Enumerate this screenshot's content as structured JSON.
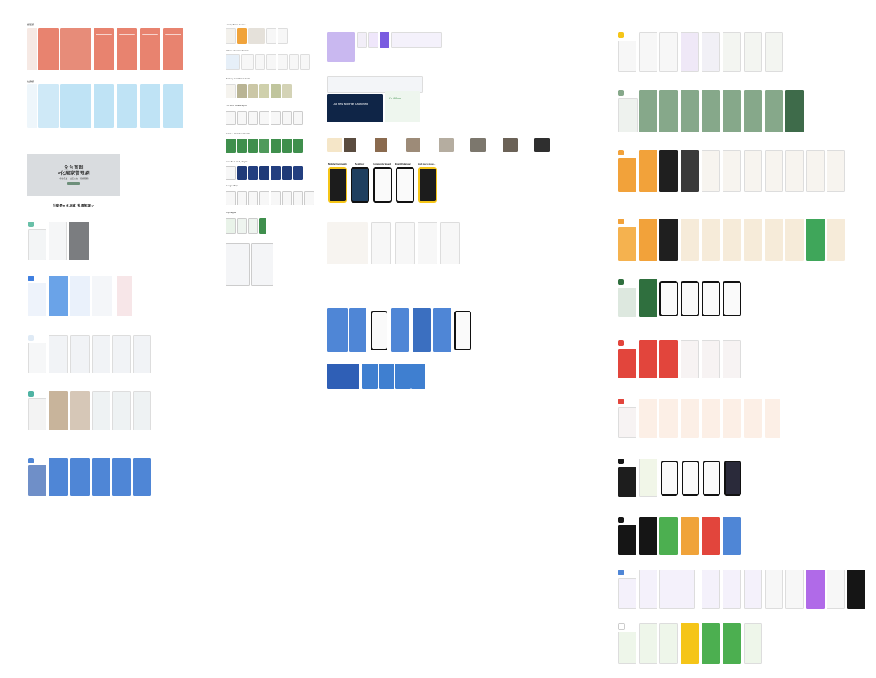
{
  "canvas": {
    "background": "#ffffff",
    "zoom": ""
  },
  "sections": {
    "left_top_label": "旅遊類",
    "left_mid_label": "社群類",
    "banner": {
      "title_line1": "全台首創",
      "title_line2": "e化居家管理網",
      "subtitle": "代收包裹 · 社區公告 · 報修服務",
      "caption": "什麼是 e 化居家 (社區管理)?"
    },
    "middle_labels": [
      "Lonely Planet Guides",
      "Airbnb: Vacation Rentals",
      "Booking.com Travel Deals",
      "Trip.com: Book Flights",
      "Hotels & Vacation Rentals",
      "Expedia: Hotels, Flights",
      "Google Maps",
      "Citymapper"
    ],
    "right_col_labels": [
      "Mobile Community",
      "Neighbor",
      "Community Board",
      "Event Calendar",
      "And much more..."
    ],
    "promo_text": "Our new app Has Launched",
    "promo_title": "It’s Official"
  },
  "colors": {
    "salmon": "#e8836f",
    "light_blue": "#bfe3f5",
    "blue": "#4f86d6",
    "green": "#3f8f4d",
    "sage": "#86a88a",
    "orange": "#f2a23a",
    "red": "#e2453c",
    "black": "#151515",
    "purple": "#7a5ce0",
    "yellow": "#f5c518"
  }
}
